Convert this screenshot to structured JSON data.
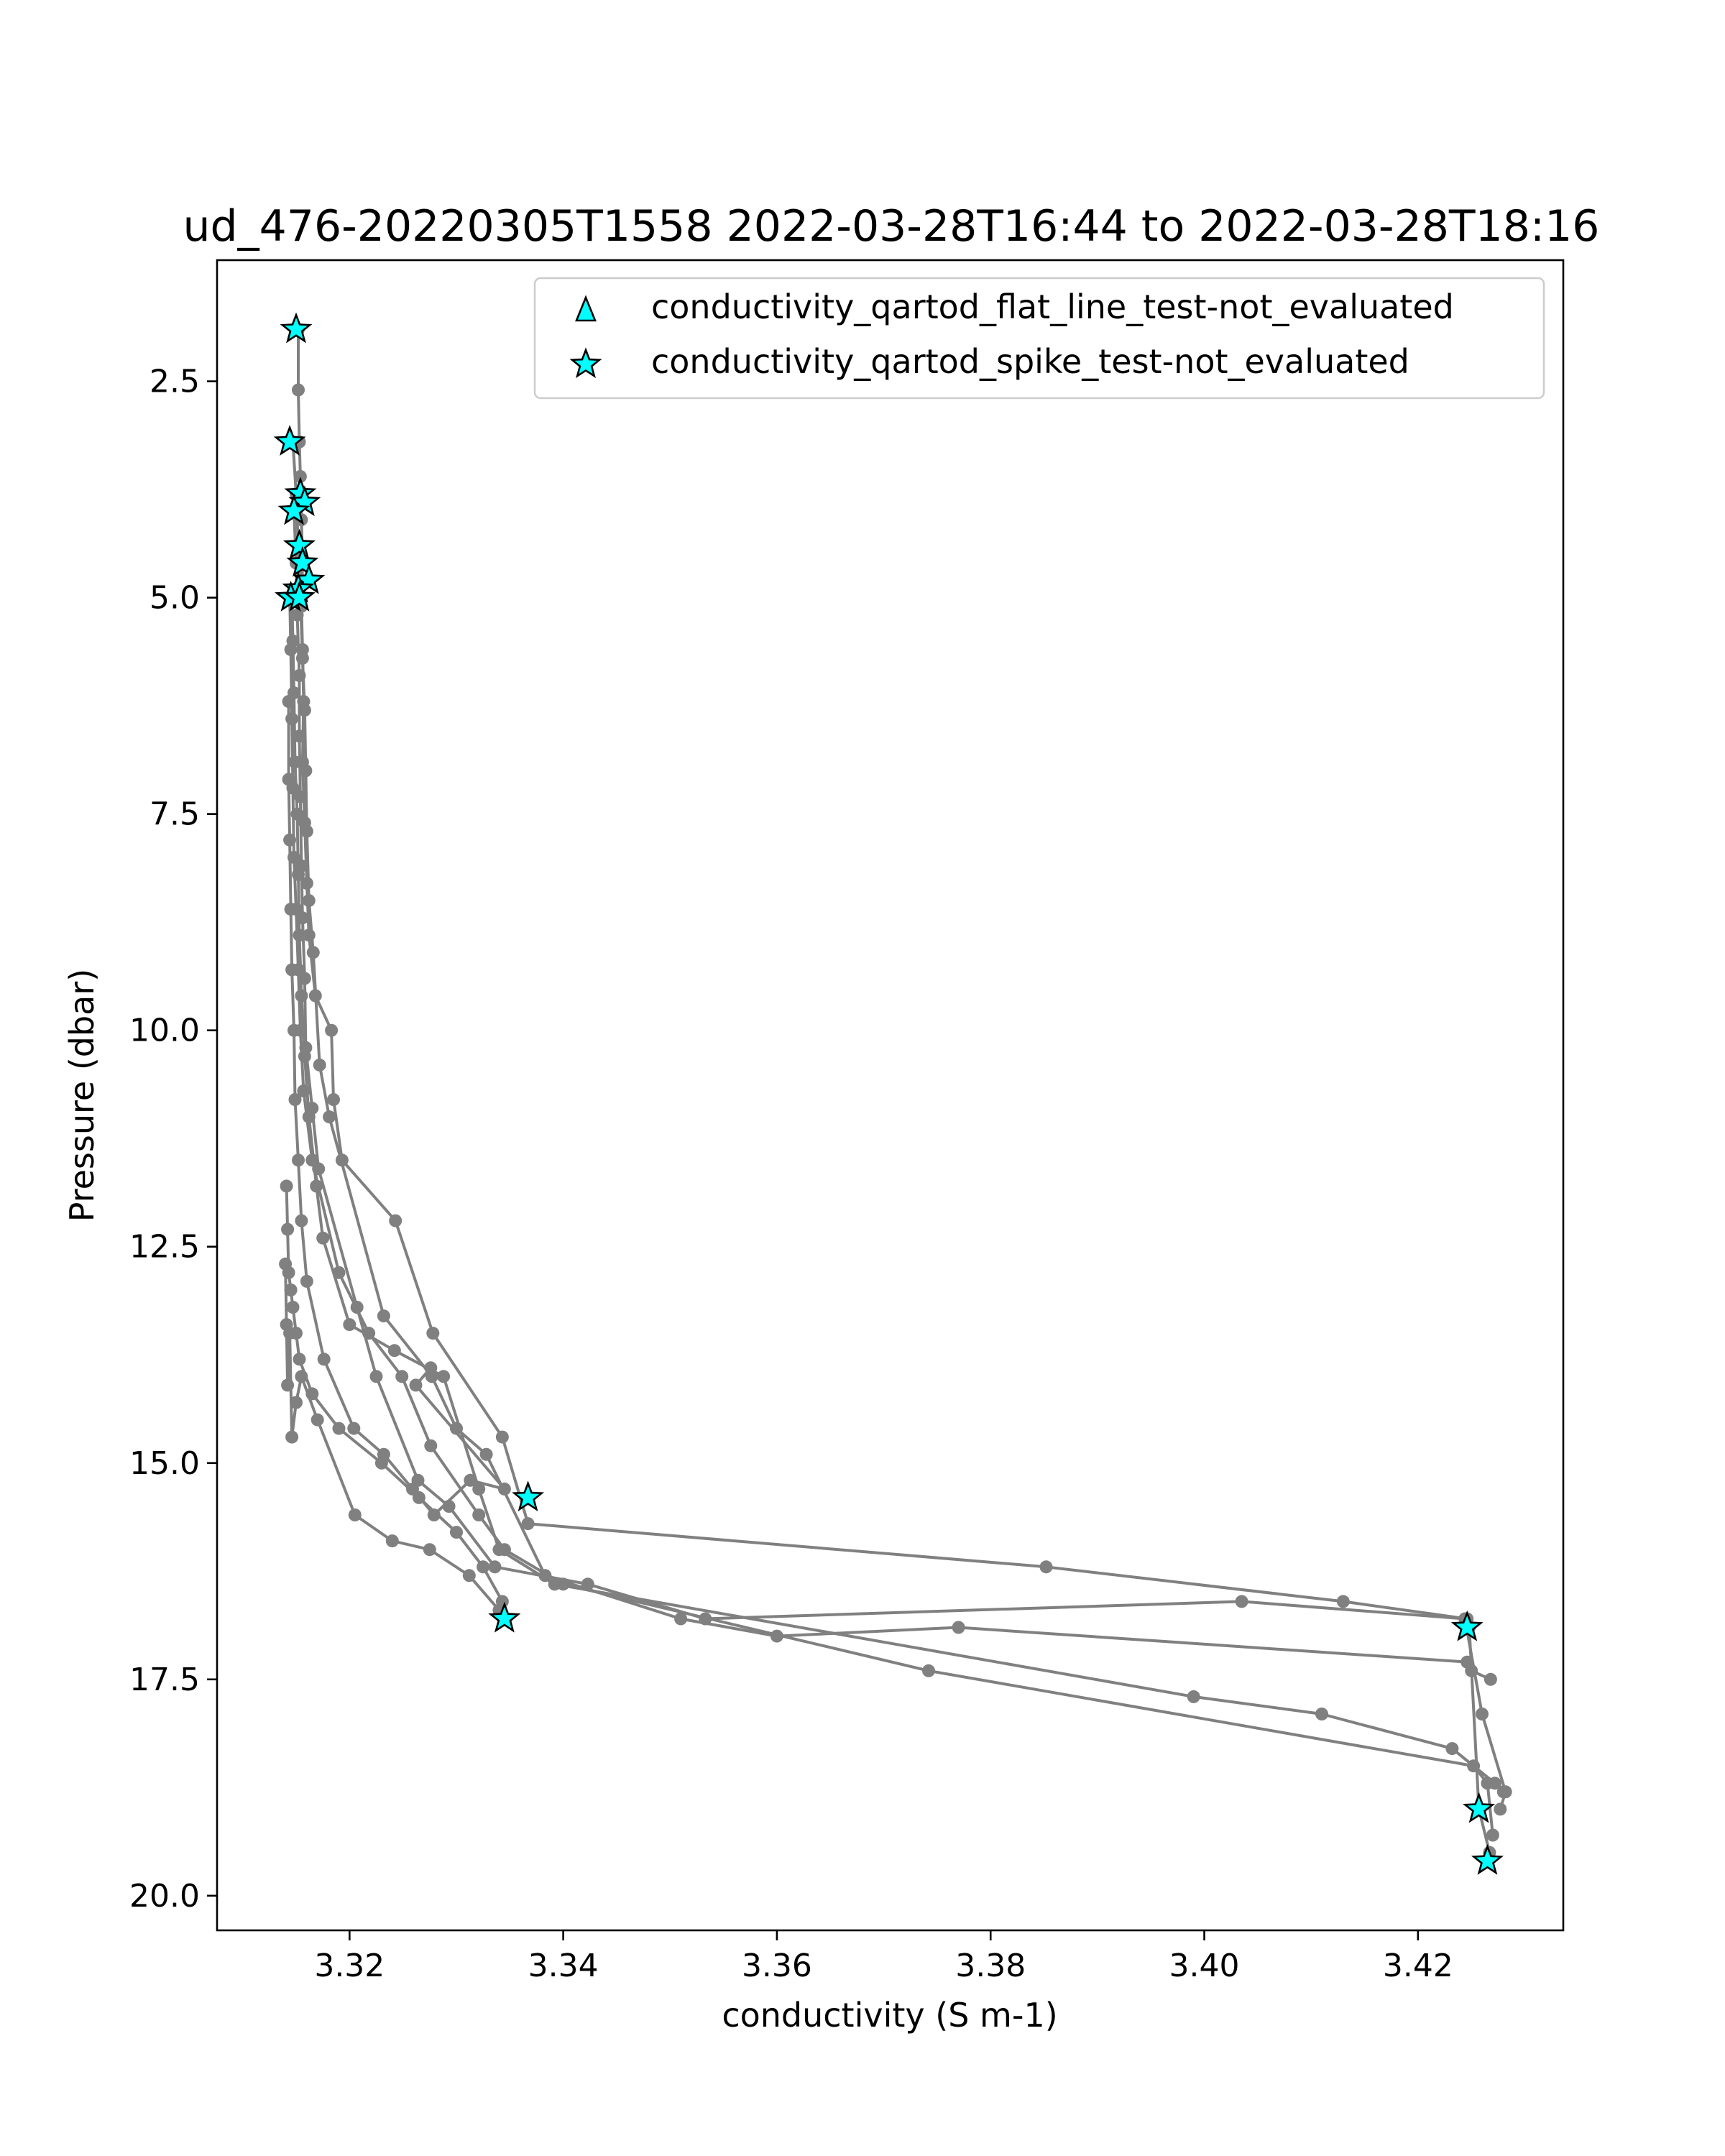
{
  "chart_data": {
    "type": "scatter",
    "title": "ud_476-20220305T1558 2022-03-28T16:44 to 2022-03-28T18:16",
    "xlabel": "conductivity (S m-1)",
    "ylabel": "Pressure (dbar)",
    "xlim": [
      3.3076,
      3.4336
    ],
    "ylim": [
      20.4,
      1.1
    ],
    "y_inverted": true,
    "grid": false,
    "legend_position": "top-right",
    "x_ticks": [
      "3.32",
      "3.34",
      "3.36",
      "3.38",
      "3.40",
      "3.42"
    ],
    "y_ticks": [
      "2.5",
      "5.0",
      "7.5",
      "10.0",
      "12.5",
      "15.0",
      "17.5",
      "20.0"
    ],
    "colors": {
      "profile_line": "#808080",
      "marker_fill": "#00ffff",
      "marker_edge": "#000000"
    },
    "legend": [
      {
        "label": "conductivity_qartod_flat_line_test-not_evaluated",
        "marker": "triangle"
      },
      {
        "label": "conductivity_qartod_spike_test-not_evaluated",
        "marker": "star"
      }
    ],
    "series": [
      {
        "role": "profile",
        "x": [
          3.3152,
          3.3152,
          3.3153,
          3.3154,
          3.3155,
          3.3156,
          3.3155,
          3.3156,
          3.3157,
          3.3156,
          3.3158,
          3.316,
          3.3162,
          3.3168,
          3.3183,
          3.3185,
          3.3193,
          3.3243,
          3.3278,
          3.3343,
          3.3367,
          3.3852,
          3.413,
          3.4246,
          3.4248,
          3.4257,
          3.4267
        ],
        "y": [
          1.9,
          2.6,
          3.2,
          3.6,
          4.1,
          4.6,
          5.1,
          5.6,
          6.2,
          6.9,
          7.6,
          8.3,
          8.9,
          9.6,
          10.0,
          10.8,
          11.5,
          12.2,
          13.5,
          14.7,
          15.7,
          16.2,
          16.6,
          16.8,
          16.9,
          19.0,
          19.5
        ]
      },
      {
        "role": "profile",
        "x": [
          3.3147,
          3.315,
          3.3152,
          3.3154,
          3.3156,
          3.3158,
          3.3159,
          3.316,
          3.3162,
          3.3166,
          3.3172,
          3.3181,
          3.3232,
          3.3277,
          3.33,
          3.3328,
          3.3383,
          3.351,
          3.36,
          3.377,
          3.4246,
          3.425,
          3.4268
        ],
        "y": [
          3.2,
          3.8,
          4.4,
          5.0,
          5.7,
          6.3,
          7.0,
          7.7,
          8.5,
          9.1,
          10.4,
          11.0,
          13.3,
          14.0,
          14.6,
          14.9,
          16.3,
          16.8,
          17.0,
          16.9,
          17.3,
          17.4,
          17.5
        ]
      },
      {
        "role": "profile",
        "x": [
          3.3148,
          3.315,
          3.3151,
          3.3153,
          3.3153,
          3.3154,
          3.3155,
          3.3156,
          3.3158,
          3.3159,
          3.3165,
          3.3171,
          3.3207,
          3.3225,
          3.3264,
          3.3293,
          3.3336,
          3.3423,
          3.3533,
          3.4035,
          3.4244,
          3.426,
          3.4282,
          3.4277
        ],
        "y": [
          4.0,
          4.6,
          5.2,
          5.9,
          6.6,
          7.3,
          8.1,
          8.7,
          9.4,
          10.2,
          10.9,
          11.6,
          13.2,
          14.0,
          15.2,
          15.5,
          16.2,
          16.4,
          16.8,
          16.6,
          16.8,
          17.9,
          18.8,
          19.0
        ]
      },
      {
        "role": "profile",
        "x": [
          3.3146,
          3.3147,
          3.3148,
          3.3149,
          3.3151,
          3.3152,
          3.3153,
          3.3155,
          3.3158,
          3.3162,
          3.3169,
          3.3175,
          3.32,
          3.3242,
          3.3288,
          3.3321,
          3.334,
          3.3392,
          3.399,
          3.411,
          3.4232,
          3.4272,
          3.428
        ],
        "y": [
          5.0,
          5.5,
          6.1,
          6.9,
          7.5,
          8.2,
          8.9,
          9.6,
          10.3,
          11.0,
          11.8,
          12.4,
          13.4,
          13.7,
          14.0,
          15.3,
          16.0,
          16.4,
          17.7,
          17.9,
          18.3,
          18.7,
          18.8
        ]
      },
      {
        "role": "profile",
        "x": [
          3.3144,
          3.3145,
          3.3146,
          3.3147,
          3.3148,
          3.315,
          3.3152,
          3.3154,
          3.3157,
          3.3165,
          3.319,
          3.3218,
          3.3249,
          3.3276,
          3.3321,
          3.3345,
          3.34,
          3.3742,
          3.4252,
          3.4265,
          3.427
        ],
        "y": [
          5.0,
          5.6,
          6.4,
          7.2,
          8.0,
          8.6,
          9.3,
          10.0,
          10.7,
          11.5,
          12.8,
          13.5,
          14.0,
          14.8,
          15.6,
          16.0,
          16.4,
          17.4,
          18.5,
          18.7,
          19.3
        ]
      },
      {
        "role": "profile",
        "x": [
          3.3143,
          3.3143,
          3.3144,
          3.3145,
          3.3146,
          3.3148,
          3.3149,
          3.3152,
          3.3155,
          3.316,
          3.3176,
          3.3204,
          3.3232,
          3.3259,
          3.3279,
          3.3313,
          3.3345,
          3.3262,
          3.3276
        ],
        "y": [
          6.2,
          7.1,
          7.8,
          8.6,
          9.3,
          10.0,
          10.8,
          11.5,
          12.2,
          12.9,
          13.8,
          14.6,
          14.9,
          15.3,
          15.6,
          15.2,
          15.3,
          14.1,
          13.9
        ]
      },
      {
        "role": "profile",
        "x": [
          3.3141,
          3.3142,
          3.3143,
          3.3145,
          3.3147,
          3.315,
          3.3153,
          3.3165,
          3.319,
          3.323,
          3.3265,
          3.33,
          3.3325,
          3.3343
        ],
        "y": [
          11.8,
          12.3,
          12.8,
          13.0,
          13.2,
          13.5,
          13.8,
          14.2,
          14.6,
          15.0,
          15.4,
          15.8,
          16.2,
          16.6
        ]
      },
      {
        "role": "profile",
        "x": [
          3.314,
          3.3141,
          3.3142,
          3.3144,
          3.3146,
          3.315,
          3.3155,
          3.317,
          3.3205,
          3.324,
          3.3275,
          3.3312,
          3.334
        ],
        "y": [
          12.7,
          13.4,
          14.1,
          13.5,
          14.7,
          14.3,
          14.0,
          14.5,
          15.6,
          15.9,
          16.0,
          16.3,
          16.7
        ]
      },
      {
        "role": "flag",
        "marker": "star",
        "x": [
          3.315,
          3.3144,
          3.3154,
          3.3158,
          3.3148,
          3.3153,
          3.3156,
          3.3162,
          3.3152,
          3.3145,
          3.3153,
          3.3367,
          3.3345,
          3.4246,
          3.4257,
          3.4265
        ],
        "y": [
          1.9,
          3.2,
          3.8,
          3.9,
          4.0,
          4.4,
          4.6,
          4.8,
          4.9,
          5.0,
          5.0,
          15.4,
          16.8,
          16.9,
          19.0,
          19.6
        ]
      }
    ]
  }
}
